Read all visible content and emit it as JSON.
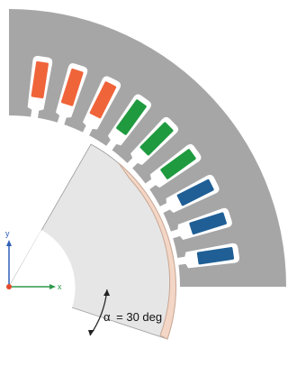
{
  "diagram": {
    "labels": {
      "axis_x": "x",
      "axis_y": "y",
      "alpha_symbol": "α",
      "angle_text": "= 30 deg"
    },
    "slot_groups": [
      {
        "name": "blue",
        "color": "#1f5f95",
        "count": 3
      },
      {
        "name": "green",
        "color": "#1f9a3f",
        "count": 3
      },
      {
        "name": "orange",
        "color": "#f0643a",
        "count": 3
      }
    ],
    "colors": {
      "stator": "#a6a6a6",
      "slot_outline": "#ffffff",
      "rotor": "#e6e6e6",
      "magnet": "#f4d6c6",
      "magnet_stroke": "#c8a894",
      "axis_x": "#2e9a4a",
      "axis_y": "#2e5fb8",
      "origin": "#e24a2a"
    }
  }
}
